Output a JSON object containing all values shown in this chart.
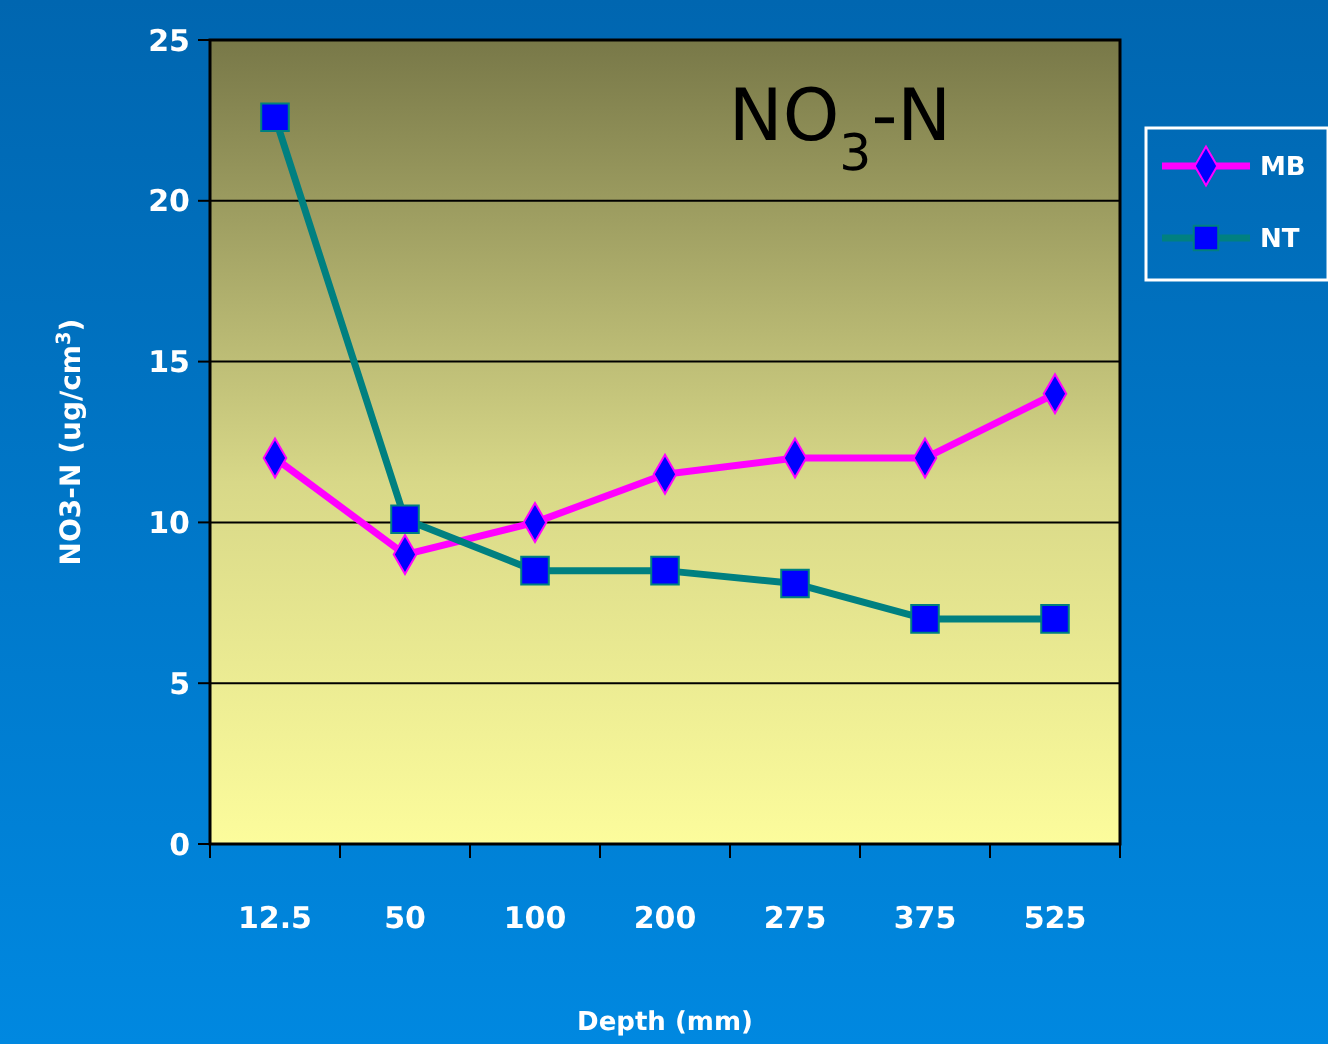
{
  "chart_data": {
    "type": "line",
    "title": "NO$_{3}$-N",
    "xlabel": "Depth (mm)",
    "ylabel": "NO3-N  (ug/cm$^{3}$)",
    "categories": [
      "12.5",
      "50",
      "100",
      "200",
      "275",
      "375",
      "525"
    ],
    "series": [
      {
        "name": "MB",
        "color": "#ff00ff",
        "marker": "diamond",
        "values": [
          12,
          9,
          10,
          11.5,
          12,
          12,
          14
        ]
      },
      {
        "name": "NT",
        "color": "#008080",
        "marker": "square",
        "values": [
          22.6,
          10.1,
          8.5,
          8.5,
          8.1,
          7,
          7
        ]
      }
    ],
    "ylim": [
      0,
      25
    ],
    "yticks": [
      0,
      5,
      10,
      15,
      20,
      25
    ],
    "grid": "y",
    "legend": "right",
    "line_style": "solid"
  }
}
